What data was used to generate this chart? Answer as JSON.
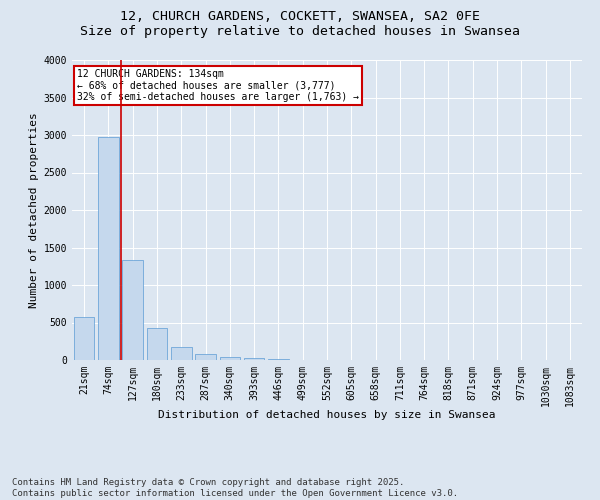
{
  "title": "12, CHURCH GARDENS, COCKETT, SWANSEA, SA2 0FE",
  "subtitle": "Size of property relative to detached houses in Swansea",
  "xlabel": "Distribution of detached houses by size in Swansea",
  "ylabel": "Number of detached properties",
  "categories": [
    "21sqm",
    "74sqm",
    "127sqm",
    "180sqm",
    "233sqm",
    "287sqm",
    "340sqm",
    "393sqm",
    "446sqm",
    "499sqm",
    "552sqm",
    "605sqm",
    "658sqm",
    "711sqm",
    "764sqm",
    "818sqm",
    "871sqm",
    "924sqm",
    "977sqm",
    "1030sqm",
    "1083sqm"
  ],
  "values": [
    580,
    2970,
    1340,
    430,
    170,
    80,
    45,
    25,
    10,
    2,
    0,
    0,
    0,
    0,
    0,
    0,
    0,
    0,
    0,
    0,
    0
  ],
  "bar_color": "#c5d8ed",
  "bar_edge_color": "#5b9bd5",
  "background_color": "#dce6f1",
  "plot_bg_color": "#dce6f1",
  "vline_x_index": 2,
  "vline_color": "#cc0000",
  "annotation_line1": "12 CHURCH GARDENS: 134sqm",
  "annotation_line2": "← 68% of detached houses are smaller (3,777)",
  "annotation_line3": "32% of semi-detached houses are larger (1,763) →",
  "annotation_box_color": "#cc0000",
  "ylim": [
    0,
    4000
  ],
  "yticks": [
    0,
    500,
    1000,
    1500,
    2000,
    2500,
    3000,
    3500,
    4000
  ],
  "footer": "Contains HM Land Registry data © Crown copyright and database right 2025.\nContains public sector information licensed under the Open Government Licence v3.0.",
  "title_fontsize": 9.5,
  "label_fontsize": 8,
  "tick_fontsize": 7,
  "footer_fontsize": 6.5
}
